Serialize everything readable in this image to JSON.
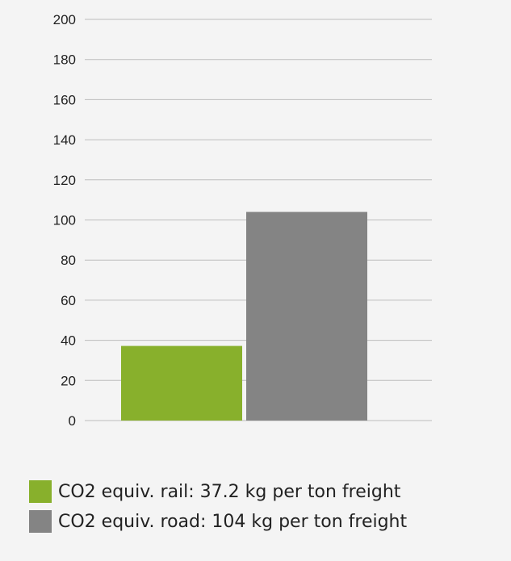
{
  "chart_data": {
    "type": "bar",
    "categories": [
      "CO2 equiv. rail",
      "CO2 equiv. road"
    ],
    "values": [
      37.2,
      104
    ],
    "colors": [
      "#88b02c",
      "#848484"
    ],
    "ylim": [
      0,
      200
    ],
    "yticks": [
      0,
      20,
      40,
      60,
      80,
      100,
      120,
      140,
      160,
      180,
      200
    ],
    "grid": true,
    "legend_position": "bottom",
    "legend": [
      {
        "label": "CO2 equiv. rail: 37.2 kg per ton freight",
        "color": "#88b02c"
      },
      {
        "label": "CO2 equiv. road: 104 kg per ton freight",
        "color": "#848484"
      }
    ]
  }
}
